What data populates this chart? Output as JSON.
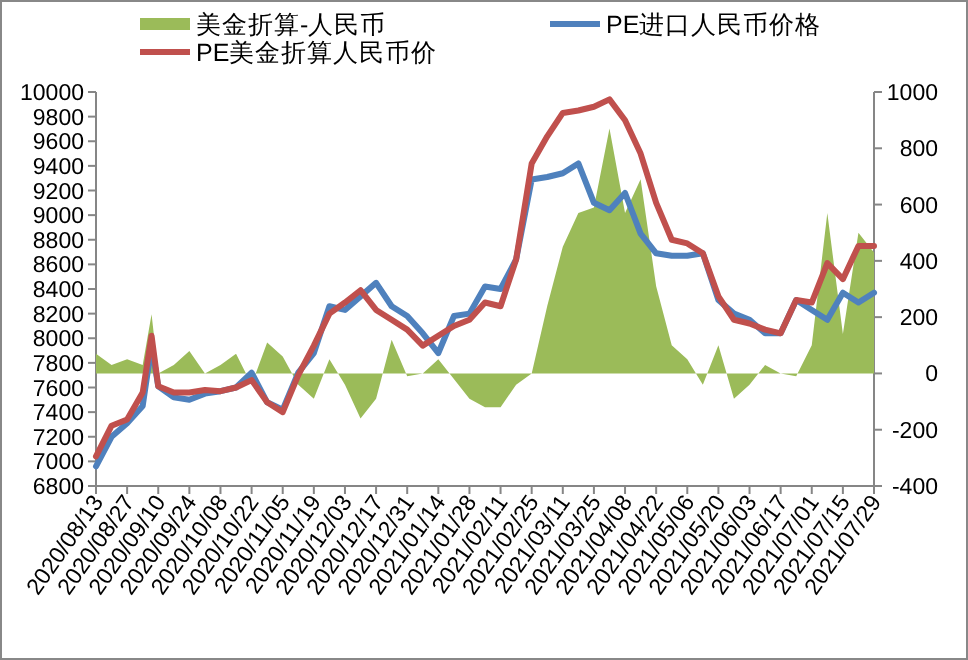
{
  "chart_data": {
    "type": "line",
    "x": [
      "2020-08-13",
      "2020-08-20",
      "2020-08-27",
      "2020-09-03",
      "2020-09-07",
      "2020-09-10",
      "2020-09-17",
      "2020-09-24",
      "2020-10-01",
      "2020-10-08",
      "2020-10-15",
      "2020-10-22",
      "2020-10-29",
      "2020-11-05",
      "2020-11-12",
      "2020-11-19",
      "2020-11-26",
      "2020-12-03",
      "2020-12-10",
      "2020-12-17",
      "2020-12-24",
      "2020-12-31",
      "2021-01-07",
      "2021-01-14",
      "2021-01-21",
      "2021-01-28",
      "2021-02-04",
      "2021-02-11",
      "2021-02-18",
      "2021-02-25",
      "2021-03-04",
      "2021-03-11",
      "2021-03-18",
      "2021-03-25",
      "2021-04-01",
      "2021-04-08",
      "2021-04-15",
      "2021-04-22",
      "2021-04-29",
      "2021-05-06",
      "2021-05-13",
      "2021-05-20",
      "2021-05-27",
      "2021-06-03",
      "2021-06-10",
      "2021-06-17",
      "2021-06-24",
      "2021-07-01",
      "2021-07-08",
      "2021-07-15",
      "2021-07-22",
      "2021-07-29"
    ],
    "series": [
      {
        "name": "美金折算-人民币",
        "type": "area",
        "axis": "y2",
        "color": "#9bbb59",
        "values": [
          70,
          30,
          50,
          30,
          210,
          0,
          30,
          80,
          0,
          30,
          70,
          -40,
          110,
          60,
          -40,
          -90,
          50,
          -40,
          -160,
          -90,
          120,
          -10,
          0,
          50,
          -20,
          -90,
          -120,
          -120,
          -40,
          0,
          240,
          450,
          570,
          590,
          870,
          570,
          690,
          310,
          100,
          50,
          -40,
          100,
          -90,
          -40,
          30,
          0,
          -10,
          100,
          570,
          140,
          500,
          430
        ]
      },
      {
        "name": "PE进口人民币价格",
        "color": "#4f81bd",
        "values": [
          6960,
          7200,
          7310,
          7450,
          7940,
          7610,
          7520,
          7500,
          7550,
          7570,
          7600,
          7720,
          7480,
          7420,
          7720,
          7880,
          8260,
          8230,
          8340,
          8450,
          8260,
          8180,
          8040,
          7880,
          8180,
          8200,
          8420,
          8400,
          8640,
          9290,
          9310,
          9340,
          9420,
          9100,
          9040,
          9180,
          8850,
          8690,
          8670,
          8670,
          8690,
          8310,
          8200,
          8150,
          8040,
          8040,
          8310,
          8230,
          8150,
          8370,
          8290,
          8370
        ]
      },
      {
        "name": "PE美金折算人民币价",
        "color": "#c0504d",
        "values": [
          7040,
          7290,
          7340,
          7560,
          8020,
          7610,
          7560,
          7560,
          7580,
          7570,
          7600,
          7660,
          7480,
          7400,
          7700,
          7940,
          8200,
          8290,
          8390,
          8230,
          8150,
          8070,
          7940,
          8020,
          8100,
          8150,
          8290,
          8260,
          8640,
          9420,
          9640,
          9830,
          9850,
          9880,
          9940,
          9770,
          9500,
          9100,
          8800,
          8770,
          8690,
          8340,
          8150,
          8120,
          8070,
          8040,
          8310,
          8290,
          8610,
          8480,
          8750,
          8750
        ]
      }
    ],
    "xlim": [
      "2020-08-13",
      "2021-07-29"
    ],
    "xticks": [
      {
        "value": "2020-08-13",
        "label": "2020/08/13"
      },
      {
        "value": "2020-08-27",
        "label": "2020/08/27"
      },
      {
        "value": "2020-09-10",
        "label": "2020/09/10"
      },
      {
        "value": "2020-09-24",
        "label": "2020/09/24"
      },
      {
        "value": "2020-10-08",
        "label": "2020/10/08"
      },
      {
        "value": "2020-10-22",
        "label": "2020/10/22"
      },
      {
        "value": "2020-11-05",
        "label": "2020/11/05"
      },
      {
        "value": "2020-11-19",
        "label": "2020/11/19"
      },
      {
        "value": "2020-12-03",
        "label": "2020/12/03"
      },
      {
        "value": "2020-12-17",
        "label": "2020/12/17"
      },
      {
        "value": "2020-12-31",
        "label": "2020/12/31"
      },
      {
        "value": "2021-01-14",
        "label": "2021/01/14"
      },
      {
        "value": "2021-01-28",
        "label": "2021/01/28"
      },
      {
        "value": "2021-02-11",
        "label": "2021/02/11"
      },
      {
        "value": "2021-02-25",
        "label": "2021/02/25"
      },
      {
        "value": "2021-03-11",
        "label": "2021/03/11"
      },
      {
        "value": "2021-03-25",
        "label": "2021/03/25"
      },
      {
        "value": "2021-04-08",
        "label": "2021/04/08"
      },
      {
        "value": "2021-04-22",
        "label": "2021/04/22"
      },
      {
        "value": "2021-05-06",
        "label": "2021/05/06"
      },
      {
        "value": "2021-05-20",
        "label": "2021/05/20"
      },
      {
        "value": "2021-06-03",
        "label": "2021/06/03"
      },
      {
        "value": "2021-06-17",
        "label": "2021/06/17"
      },
      {
        "value": "2021-07-01",
        "label": "2021/07/01"
      },
      {
        "value": "2021-07-15",
        "label": "2021/07/15"
      },
      {
        "value": "2021-07-29",
        "label": "2021/07/29"
      }
    ],
    "ylim": [
      6800,
      10000
    ],
    "yticks": [
      6800,
      7000,
      7200,
      7400,
      7600,
      7800,
      8000,
      8200,
      8400,
      8600,
      8800,
      9000,
      9200,
      9400,
      9600,
      9800,
      10000
    ],
    "y2lim": [
      -400,
      1000
    ],
    "y2ticks": [
      -400,
      -200,
      0,
      200,
      400,
      600,
      800,
      1000
    ],
    "legend": "top"
  }
}
